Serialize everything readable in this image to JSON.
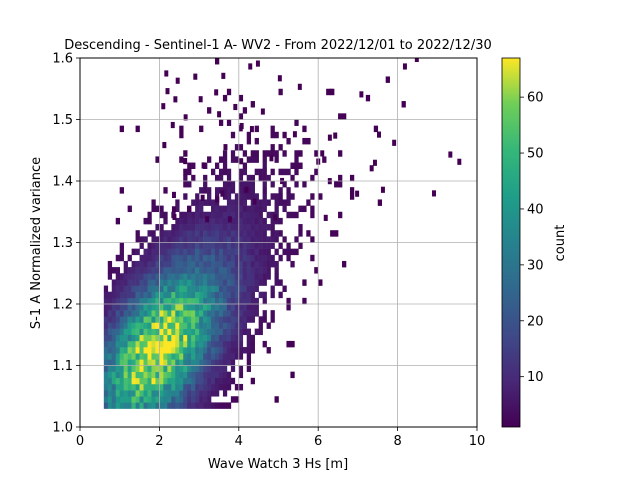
{
  "chart_data": {
    "type": "heatmap",
    "title": "Descending - Sentinel-1 A- WV2 - From 2022/12/01 to 2022/12/30",
    "xlabel": "Wave Watch 3 Hs [m]",
    "ylabel": "S-1 A Normalized variance",
    "xlim": [
      0,
      10
    ],
    "ylim": [
      1.0,
      1.6
    ],
    "xticks": [
      "0",
      "2",
      "4",
      "6",
      "8",
      "10"
    ],
    "yticks": [
      "1.0",
      "1.1",
      "1.2",
      "1.3",
      "1.4",
      "1.5",
      "1.6"
    ],
    "grid": true,
    "colormap": "viridis",
    "colorbar": {
      "label": "count",
      "range": [
        1,
        67
      ],
      "ticks": [
        "10",
        "20",
        "30",
        "40",
        "50",
        "60"
      ]
    },
    "bins": {
      "x_width": 0.1,
      "y_width": 0.01
    },
    "density_model": {
      "core_x": 1.9,
      "core_y": 1.12,
      "peak_count": 67,
      "trend_slope": 0.048
    }
  }
}
